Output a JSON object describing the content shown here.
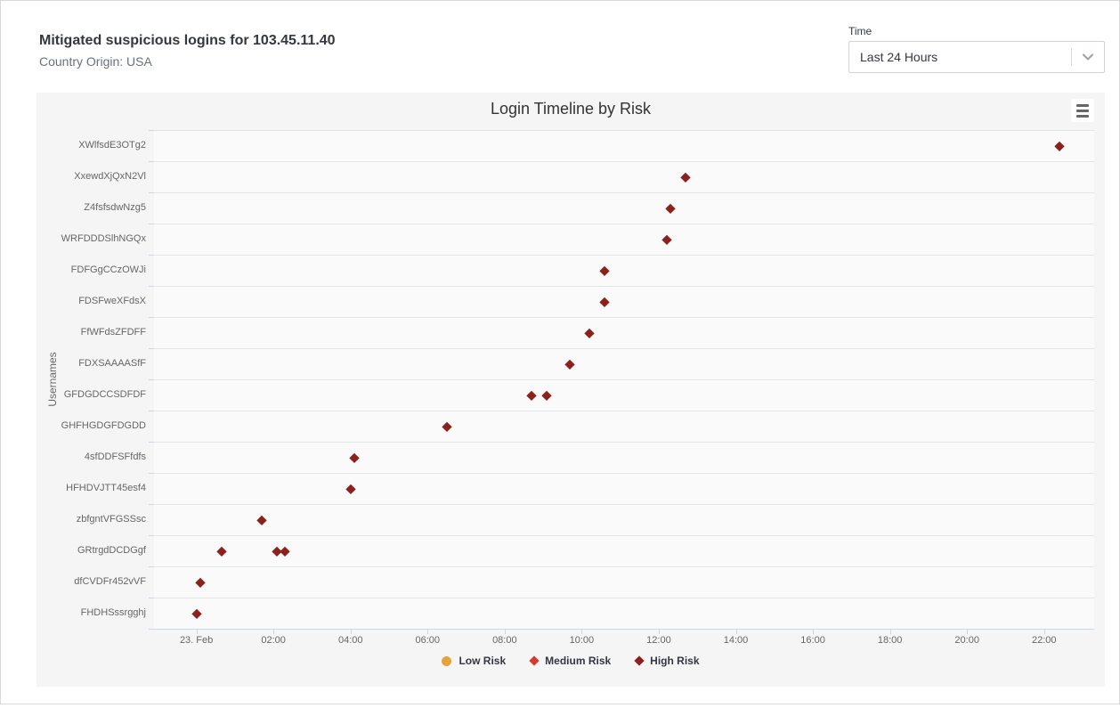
{
  "header": {
    "title": "Mitigated suspicious logins for 103.45.11.40",
    "subtitle": "Country Origin: USA",
    "time_label": "Time",
    "time_value": "Last 24 Hours"
  },
  "icons": {
    "time_select_chevron": "chevron-down-icon",
    "chart_context_menu": "hamburger-menu-icon"
  },
  "chart_data": {
    "type": "scatter",
    "title": "Login Timeline by Risk",
    "ylabel": "Usernames",
    "xlabel": "",
    "grid": "horizontal-only",
    "legend_position": "bottom-center",
    "x_axis": {
      "range_hours": [
        -1.1,
        23.3
      ],
      "ticks": [
        {
          "hour": 0,
          "label": "23. Feb"
        },
        {
          "hour": 2,
          "label": "02:00"
        },
        {
          "hour": 4,
          "label": "04:00"
        },
        {
          "hour": 6,
          "label": "06:00"
        },
        {
          "hour": 8,
          "label": "08:00"
        },
        {
          "hour": 10,
          "label": "10:00"
        },
        {
          "hour": 12,
          "label": "12:00"
        },
        {
          "hour": 14,
          "label": "14:00"
        },
        {
          "hour": 16,
          "label": "16:00"
        },
        {
          "hour": 18,
          "label": "18:00"
        },
        {
          "hour": 20,
          "label": "20:00"
        },
        {
          "hour": 22,
          "label": "22:00"
        }
      ]
    },
    "categories": [
      "XWlfsdE3OTg2",
      "XxewdXjQxN2Vl",
      "Z4fsfsdwNzg5",
      "WRFDDDSlhNGQx",
      "FDFGgCCzOWJi",
      "FDSFweXFdsX",
      "FfWFdsZFDFF",
      "FDXSAAAASfF",
      "GFDGDCCSDFDF",
      "GHFHGDGFDGDD",
      "4sfDDFSFfdfs",
      "HFHDVJTT45esf4",
      "zbfgntVFGSSsc",
      "GRtrgdDCDGgf",
      "dfCVDFr452vVF",
      "FHDHSssrgghj"
    ],
    "legend": [
      {
        "name": "Low Risk",
        "shape": "circle",
        "color": "#E8A23B"
      },
      {
        "name": "Medium Risk",
        "shape": "diamond",
        "color": "#D23C32"
      },
      {
        "name": "High Risk",
        "shape": "diamond",
        "color": "#8C211C"
      }
    ],
    "series": [
      {
        "name": "Low Risk",
        "shape": "circle",
        "color": "#E8A23B",
        "points": []
      },
      {
        "name": "Medium Risk",
        "shape": "diamond",
        "color": "#D23C32",
        "points": []
      },
      {
        "name": "High Risk",
        "shape": "diamond",
        "color": "#8C211C",
        "points": [
          {
            "username": "XWlfsdE3OTg2",
            "hour": 22.4
          },
          {
            "username": "XxewdXjQxN2Vl",
            "hour": 12.7
          },
          {
            "username": "Z4fsfsdwNzg5",
            "hour": 12.3
          },
          {
            "username": "WRFDDDSlhNGQx",
            "hour": 12.2
          },
          {
            "username": "FDFGgCCzOWJi",
            "hour": 10.6
          },
          {
            "username": "FDSFweXFdsX",
            "hour": 10.6
          },
          {
            "username": "FfWFdsZFDFF",
            "hour": 10.2
          },
          {
            "username": "FDXSAAAASfF",
            "hour": 9.7
          },
          {
            "username": "GFDGDCCSDFDF",
            "hour": 8.7
          },
          {
            "username": "GFDGDCCSDFDF",
            "hour": 9.1
          },
          {
            "username": "GHFHGDGFDGDD",
            "hour": 6.5
          },
          {
            "username": "4sfDDFSFfdfs",
            "hour": 4.1
          },
          {
            "username": "HFHDVJTT45esf4",
            "hour": 4.0
          },
          {
            "username": "zbfgntVFGSSsc",
            "hour": 1.7
          },
          {
            "username": "GRtrgdDCDGgf",
            "hour": 0.65
          },
          {
            "username": "GRtrgdDCDGgf",
            "hour": 2.1
          },
          {
            "username": "GRtrgdDCDGgf",
            "hour": 2.3
          },
          {
            "username": "dfCVDFr452vVF",
            "hour": 0.1
          },
          {
            "username": "FHDHSssrgghj",
            "hour": 0.0
          }
        ]
      }
    ]
  }
}
